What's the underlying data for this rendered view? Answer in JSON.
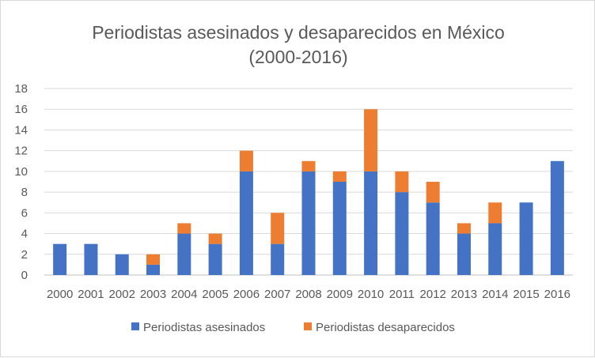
{
  "chart_data": {
    "type": "bar",
    "stacked": true,
    "title_line1": "Periodistas asesinados y desaparecidos en México",
    "title_line2": "(2000-2016)",
    "xlabel": "",
    "ylabel": "",
    "categories": [
      "2000",
      "2001",
      "2002",
      "2003",
      "2004",
      "2005",
      "2006",
      "2007",
      "2008",
      "2009",
      "2010",
      "2011",
      "2012",
      "2013",
      "2014",
      "2015",
      "2016"
    ],
    "series": [
      {
        "name": "Periodistas asesinados",
        "color": "#4472c4",
        "values": [
          3,
          3,
          2,
          1,
          4,
          3,
          10,
          3,
          10,
          9,
          10,
          8,
          7,
          4,
          5,
          7,
          11
        ]
      },
      {
        "name": "Periodistas desaparecidos",
        "color": "#ed7d31",
        "values": [
          0,
          0,
          0,
          1,
          1,
          1,
          2,
          3,
          1,
          1,
          6,
          2,
          2,
          1,
          2,
          0,
          0
        ]
      }
    ],
    "ylim": [
      0,
      18
    ],
    "yticks": [
      0,
      2,
      4,
      6,
      8,
      10,
      12,
      14,
      16,
      18
    ],
    "grid": true,
    "legend_position": "bottom"
  }
}
